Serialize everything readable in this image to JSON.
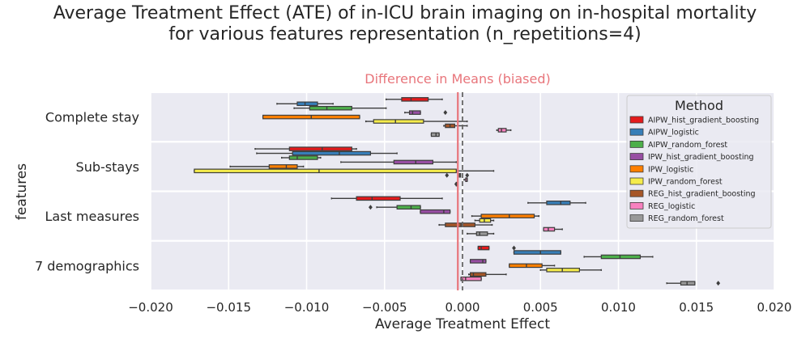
{
  "chart_data": {
    "type": "box",
    "title": "Average Treatment Effect (ATE) of in-ICU brain imaging on in-hospital mortality\nfor various features representation (n_repetitions=4)",
    "title_lines": [
      "Average Treatment Effect (ATE) of in-ICU brain imaging on in-hospital mortality",
      "for various features representation (n_repetitions=4)"
    ],
    "xlabel": "Average Treatment Effect",
    "ylabel": "features",
    "xlim": [
      -0.02,
      0.02
    ],
    "xticks": [
      -0.02,
      -0.015,
      -0.01,
      -0.005,
      0.0,
      0.005,
      0.01,
      0.015,
      0.02
    ],
    "xtick_labels": [
      "−0.020",
      "−0.015",
      "−0.010",
      "−0.005",
      "0.000",
      "0.005",
      "0.010",
      "0.015",
      "0.020"
    ],
    "categories": [
      "Complete stay",
      "Sub-stays",
      "Last measures",
      "7 demographics"
    ],
    "reference_line": {
      "label": "Difference in Means (biased)",
      "value": -0.0003,
      "color": "#e8757b"
    },
    "zero_line": {
      "value": 0.0,
      "style": "dashed"
    },
    "legend": {
      "title": "Method",
      "position": "upper right"
    },
    "grid": true,
    "series": [
      {
        "name": "AIPW_hist_gradient_boosting",
        "color": "#e41a1c",
        "boxes": [
          {
            "whislo": -0.0049,
            "q1": -0.0039,
            "med": -0.0033,
            "q3": -0.0022,
            "whishi": -0.0013,
            "fliers": []
          },
          {
            "whislo": -0.0133,
            "q1": -0.0111,
            "med": -0.009,
            "q3": -0.0071,
            "whislo_note": "",
            "whishi": -0.0068,
            "fliers": []
          },
          {
            "whislo": -0.0084,
            "q1": -0.0068,
            "med": -0.0058,
            "q3": -0.004,
            "whishi": -0.0013,
            "fliers": []
          },
          {
            "whislo": 0.001,
            "q1": 0.001,
            "med": 0.0012,
            "q3": 0.0017,
            "whishi": 0.0017,
            "fliers": [
              0.0033
            ]
          }
        ]
      },
      {
        "name": "AIPW_logistic",
        "color": "#377eb8",
        "boxes": [
          {
            "whislo": -0.0119,
            "q1": -0.0106,
            "med": -0.0101,
            "q3": -0.0093,
            "whishi": -0.0083,
            "fliers": []
          },
          {
            "whislo": -0.0132,
            "q1": -0.0109,
            "med": -0.0079,
            "q3": -0.0059,
            "whishi": -0.0042,
            "fliers": []
          },
          {
            "whislo": 0.0042,
            "q1": 0.0054,
            "med": 0.0063,
            "q3": 0.0069,
            "whishi": 0.0079,
            "fliers": []
          },
          {
            "whislo": 0.0033,
            "q1": 0.0033,
            "med": 0.005,
            "q3": 0.0063,
            "whishi": 0.0063,
            "fliers": []
          }
        ]
      },
      {
        "name": "AIPW_random_forest",
        "color": "#4daf4a",
        "boxes": [
          {
            "whislo": -0.0108,
            "q1": -0.0098,
            "med": -0.0087,
            "q3": -0.0071,
            "whishi": -0.0049,
            "fliers": []
          },
          {
            "whislo": -0.0116,
            "q1": -0.0111,
            "med": -0.0106,
            "q3": -0.0093,
            "whishi": -0.0091,
            "fliers": []
          },
          {
            "whislo": -0.0055,
            "q1": -0.0042,
            "med": -0.0033,
            "q3": -0.0027,
            "whishi": -0.0027,
            "fliers": [
              -0.0059
            ]
          },
          {
            "whislo": 0.0078,
            "q1": 0.0089,
            "med": 0.0101,
            "q3": 0.0114,
            "whishi": 0.0122,
            "fliers": []
          }
        ]
      },
      {
        "name": "IPW_hist_gradient_boosting",
        "color": "#984ea3",
        "boxes": [
          {
            "whislo": -0.0037,
            "q1": -0.0034,
            "med": -0.0032,
            "q3": -0.0027,
            "whishi": -0.0027,
            "fliers": [
              -0.0011
            ]
          },
          {
            "whislo": -0.0078,
            "q1": -0.0044,
            "med": -0.003,
            "q3": -0.0019,
            "whishi": -0.0004,
            "fliers": []
          },
          {
            "whislo": -0.0027,
            "q1": -0.0027,
            "med": -0.0012,
            "q3": -0.0008,
            "whishi": -0.0008,
            "fliers": []
          },
          {
            "whislo": 0.0005,
            "q1": 0.0005,
            "med": 0.0013,
            "q3": 0.0015,
            "whishi": 0.0015,
            "fliers": []
          }
        ]
      },
      {
        "name": "IPW_logistic",
        "color": "#ff7f00",
        "boxes": [
          {
            "whislo": -0.0128,
            "q1": -0.0128,
            "med": -0.0097,
            "q3": -0.0066,
            "whishi": -0.0066,
            "fliers": []
          },
          {
            "whislo": -0.0149,
            "q1": -0.0124,
            "med": -0.0113,
            "q3": -0.0106,
            "whishi": -0.0102,
            "fliers": []
          },
          {
            "whislo": 0.0006,
            "q1": 0.0012,
            "med": 0.003,
            "q3": 0.0046,
            "whishi": 0.0049,
            "fliers": []
          },
          {
            "whislo": 0.003,
            "q1": 0.003,
            "med": 0.0041,
            "q3": 0.0051,
            "whishi": 0.0059,
            "fliers": []
          }
        ]
      },
      {
        "name": "IPW_random_forest",
        "color": "#f5ec4c",
        "boxes": [
          {
            "whislo": -0.0062,
            "q1": -0.0057,
            "med": -0.0043,
            "q3": -0.0025,
            "whishi": 0.0003,
            "fliers": []
          },
          {
            "whislo": -0.0172,
            "q1": -0.0172,
            "med": -0.0092,
            "q3": -0.0004,
            "whishi": 0.002,
            "fliers": []
          },
          {
            "whislo": 0.0008,
            "q1": 0.0011,
            "med": 0.0014,
            "q3": 0.0018,
            "whishi": 0.002,
            "fliers": []
          },
          {
            "whislo": 0.005,
            "q1": 0.0054,
            "med": 0.0064,
            "q3": 0.0075,
            "whishi": 0.0089,
            "fliers": []
          }
        ]
      },
      {
        "name": "REG_hist_gradient_boosting",
        "color": "#a65628",
        "boxes": [
          {
            "whislo": -0.0012,
            "q1": -0.0011,
            "med": -0.0008,
            "q3": -0.0005,
            "whishi": 0.0003,
            "fliers": []
          },
          {
            "whislo": -0.0002,
            "q1": -0.0002,
            "med": -0.0002,
            "q3": -0.0002,
            "whishi": -0.0002,
            "fliers": [
              -0.001,
              0.0003
            ]
          },
          {
            "whislo": -0.0015,
            "q1": -0.0011,
            "med": -0.0001,
            "q3": 0.0008,
            "whishi": 0.0019,
            "fliers": []
          },
          {
            "whislo": 0.0004,
            "q1": 0.0005,
            "med": 0.0007,
            "q3": 0.0015,
            "whishi": 0.0028,
            "fliers": []
          }
        ]
      },
      {
        "name": "REG_logistic",
        "color": "#f781bf",
        "boxes": [
          {
            "whislo": 0.0022,
            "q1": 0.0023,
            "med": 0.0025,
            "q3": 0.0028,
            "whishi": 0.0031,
            "fliers": []
          },
          {
            "whislo": 0.0001,
            "q1": 0.0002,
            "med": 0.0003,
            "q3": 0.0003,
            "whishi": 0.0003,
            "fliers": []
          },
          {
            "whislo": 0.0052,
            "q1": 0.0052,
            "med": 0.0055,
            "q3": 0.0059,
            "whishi": 0.0064,
            "fliers": []
          },
          {
            "whislo": -0.0001,
            "q1": -0.0001,
            "med": 0.0002,
            "q3": 0.0012,
            "whishi": 0.0012,
            "fliers": []
          }
        ]
      },
      {
        "name": "REG_random_forest",
        "color": "#999999",
        "boxes": [
          {
            "whislo": -0.002,
            "q1": -0.002,
            "med": -0.0017,
            "q3": -0.0015,
            "whishi": -0.0015,
            "fliers": []
          },
          {
            "whislo": -0.0004,
            "q1": -0.0004,
            "med": -0.0004,
            "q3": -0.0004,
            "whishi": -0.0004,
            "fliers": [
              -0.0004
            ]
          },
          {
            "whislo": 0.0003,
            "q1": 0.0009,
            "med": 0.0011,
            "q3": 0.0016,
            "whishi": 0.002,
            "fliers": []
          },
          {
            "whislo": 0.0131,
            "q1": 0.014,
            "med": 0.0144,
            "q3": 0.0149,
            "whishi": 0.0149,
            "fliers": [
              0.0164
            ]
          }
        ]
      }
    ]
  }
}
